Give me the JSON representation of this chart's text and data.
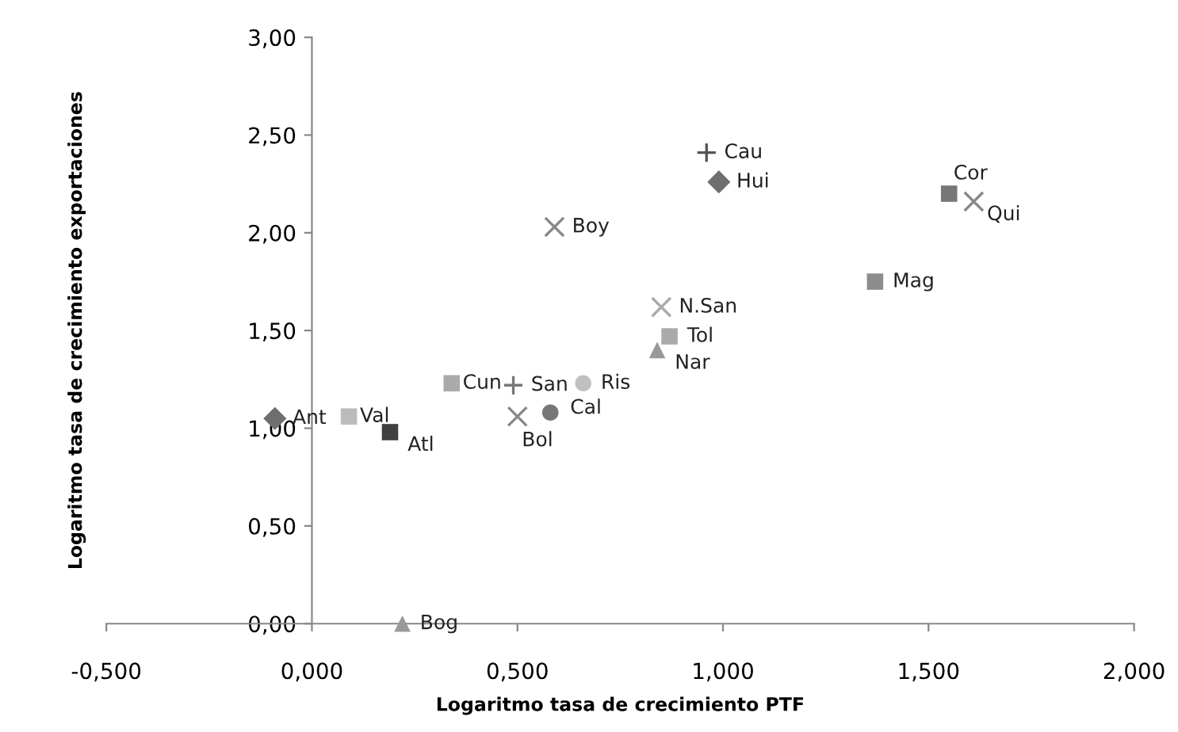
{
  "chart_data": {
    "type": "scatter",
    "xlabel": "Logaritmo tasa de crecimiento PTF",
    "ylabel": "Logaritmo tasa de crecimiento exportaciones",
    "xlim": [
      -0.5,
      2.0
    ],
    "ylim": [
      0,
      3.0
    ],
    "xticks": [
      {
        "value": -0.5,
        "label": "-0,500"
      },
      {
        "value": 0,
        "label": "0,000"
      },
      {
        "value": 0.5,
        "label": "0,500"
      },
      {
        "value": 1.0,
        "label": "1,000"
      },
      {
        "value": 1.5,
        "label": "1,500"
      },
      {
        "value": 2.0,
        "label": "2,000"
      }
    ],
    "yticks": [
      {
        "value": 0,
        "label": "0,00"
      },
      {
        "value": 0.5,
        "label": "0,50"
      },
      {
        "value": 1.0,
        "label": "1,00"
      },
      {
        "value": 1.5,
        "label": "1,50"
      },
      {
        "value": 2.0,
        "label": "2,00"
      },
      {
        "value": 2.5,
        "label": "2,50"
      },
      {
        "value": 3.0,
        "label": "3,00"
      }
    ],
    "grid": false,
    "series": [
      {
        "name": "Cau",
        "color": "#555555",
        "marker": "plus",
        "x": [
          0.96
        ],
        "values": [
          2.41
        ]
      },
      {
        "name": "Hui",
        "color": "#6e6e6e",
        "marker": "diamond",
        "x": [
          0.99
        ],
        "values": [
          2.26
        ]
      },
      {
        "name": "Boy",
        "color": "#888888",
        "marker": "cross",
        "x": [
          0.59
        ],
        "values": [
          2.03
        ]
      },
      {
        "name": "Cor",
        "color": "#777777",
        "marker": "square",
        "x": [
          1.55
        ],
        "values": [
          2.2
        ]
      },
      {
        "name": "Qui",
        "color": "#888888",
        "marker": "cross",
        "x": [
          1.61
        ],
        "values": [
          2.16
        ]
      },
      {
        "name": "Mag",
        "color": "#8c8c8c",
        "marker": "square",
        "x": [
          1.37
        ],
        "values": [
          1.75
        ]
      },
      {
        "name": "N.San",
        "color": "#aaaaaa",
        "marker": "cross",
        "x": [
          0.85
        ],
        "values": [
          1.62
        ]
      },
      {
        "name": "Tol",
        "color": "#aaaaaa",
        "marker": "square",
        "x": [
          0.87
        ],
        "values": [
          1.47
        ]
      },
      {
        "name": "Nar",
        "color": "#999999",
        "marker": "triangle",
        "x": [
          0.84
        ],
        "values": [
          1.4
        ]
      },
      {
        "name": "Cun",
        "color": "#aaaaaa",
        "marker": "square",
        "x": [
          0.34
        ],
        "values": [
          1.23
        ]
      },
      {
        "name": "San",
        "color": "#777777",
        "marker": "plus",
        "x": [
          0.49
        ],
        "values": [
          1.22
        ]
      },
      {
        "name": "Ris",
        "color": "#c0c0c0",
        "marker": "circle",
        "x": [
          0.66
        ],
        "values": [
          1.23
        ]
      },
      {
        "name": "Bol",
        "color": "#888888",
        "marker": "cross",
        "x": [
          0.5
        ],
        "values": [
          1.06
        ]
      },
      {
        "name": "Cal",
        "color": "#777777",
        "marker": "circle",
        "x": [
          0.58
        ],
        "values": [
          1.08
        ]
      },
      {
        "name": "Ant",
        "color": "#6e6e6e",
        "marker": "diamond",
        "x": [
          -0.09
        ],
        "values": [
          1.05
        ]
      },
      {
        "name": "Val",
        "color": "#bbbbbb",
        "marker": "square",
        "x": [
          0.09
        ],
        "values": [
          1.06
        ]
      },
      {
        "name": "Atl",
        "color": "#404040",
        "marker": "square",
        "x": [
          0.19
        ],
        "values": [
          0.98
        ]
      },
      {
        "name": "Bog",
        "color": "#999999",
        "marker": "triangle",
        "x": [
          0.22
        ],
        "values": [
          0.0
        ]
      }
    ]
  }
}
